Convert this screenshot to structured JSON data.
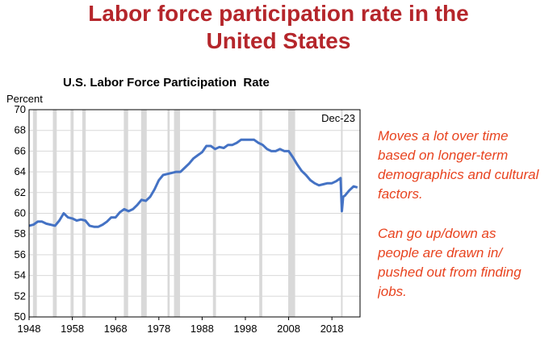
{
  "slide": {
    "title_line1": "Labor force participation rate in the",
    "title_line2": "United States"
  },
  "notes": [
    [
      "Moves a lot over time",
      "based on longer-term",
      "demographics and cultural",
      "factors."
    ],
    [
      "Can go up/down as",
      "people are drawn in/",
      "pushed out from finding",
      "jobs."
    ]
  ],
  "colors": {
    "title": "#b5262b",
    "series": "#4472c4",
    "recession": "#d9d9d9",
    "notes": "#e8431f"
  },
  "chart_data": {
    "type": "line",
    "title": "U.S. Labor Force Participation  Rate",
    "ylabel": "Percent",
    "xlabel": "",
    "annotation": "Dec-23",
    "ylim": [
      50,
      70
    ],
    "yticks": [
      50,
      52,
      54,
      56,
      58,
      60,
      62,
      64,
      66,
      68,
      70
    ],
    "xlim": [
      1948,
      2024.5
    ],
    "xticks": [
      1948,
      1958,
      1968,
      1978,
      1988,
      1998,
      2008,
      2018
    ],
    "grid": "horizontal",
    "recessions": [
      [
        1948.9,
        1949.8
      ],
      [
        1953.5,
        1954.4
      ],
      [
        1957.6,
        1958.3
      ],
      [
        1960.3,
        1961.1
      ],
      [
        1969.9,
        1970.9
      ],
      [
        1973.9,
        1975.2
      ],
      [
        1980.0,
        1980.5
      ],
      [
        1981.5,
        1982.9
      ],
      [
        1990.5,
        1991.2
      ],
      [
        2001.2,
        2001.9
      ],
      [
        2007.9,
        2009.5
      ],
      [
        2020.1,
        2020.3
      ]
    ],
    "series": [
      {
        "x": [
          1948,
          1949,
          1950,
          1951,
          1952,
          1953,
          1954,
          1955,
          1956,
          1957,
          1958,
          1959,
          1960,
          1961,
          1962,
          1963,
          1964,
          1965,
          1966,
          1967,
          1968,
          1969,
          1970,
          1971,
          1972,
          1973,
          1974,
          1975,
          1976,
          1977,
          1978,
          1979,
          1980,
          1981,
          1982,
          1983,
          1984,
          1985,
          1986,
          1987,
          1988,
          1989,
          1990,
          1991,
          1992,
          1993,
          1994,
          1995,
          1996,
          1997,
          1998,
          1999,
          2000,
          2001,
          2002,
          2003,
          2004,
          2005,
          2006,
          2007,
          2008,
          2009,
          2010,
          2011,
          2012,
          2013,
          2014,
          2015,
          2016,
          2017,
          2018,
          2019,
          2020.0,
          2020.3,
          2020.6,
          2021,
          2022,
          2023,
          2023.9
        ],
        "y": [
          58.8,
          58.9,
          59.2,
          59.2,
          59.0,
          58.9,
          58.8,
          59.3,
          60.0,
          59.6,
          59.5,
          59.3,
          59.4,
          59.3,
          58.8,
          58.7,
          58.7,
          58.9,
          59.2,
          59.6,
          59.6,
          60.1,
          60.4,
          60.2,
          60.4,
          60.8,
          61.3,
          61.2,
          61.6,
          62.3,
          63.2,
          63.7,
          63.8,
          63.9,
          64.0,
          64.0,
          64.4,
          64.8,
          65.3,
          65.6,
          65.9,
          66.5,
          66.5,
          66.2,
          66.4,
          66.3,
          66.6,
          66.6,
          66.8,
          67.1,
          67.1,
          67.1,
          67.1,
          66.8,
          66.6,
          66.2,
          66.0,
          66.0,
          66.2,
          66.0,
          66.0,
          65.4,
          64.7,
          64.1,
          63.7,
          63.2,
          62.9,
          62.7,
          62.8,
          62.9,
          62.9,
          63.1,
          63.4,
          60.2,
          61.6,
          61.7,
          62.2,
          62.6,
          62.5
        ]
      }
    ]
  }
}
